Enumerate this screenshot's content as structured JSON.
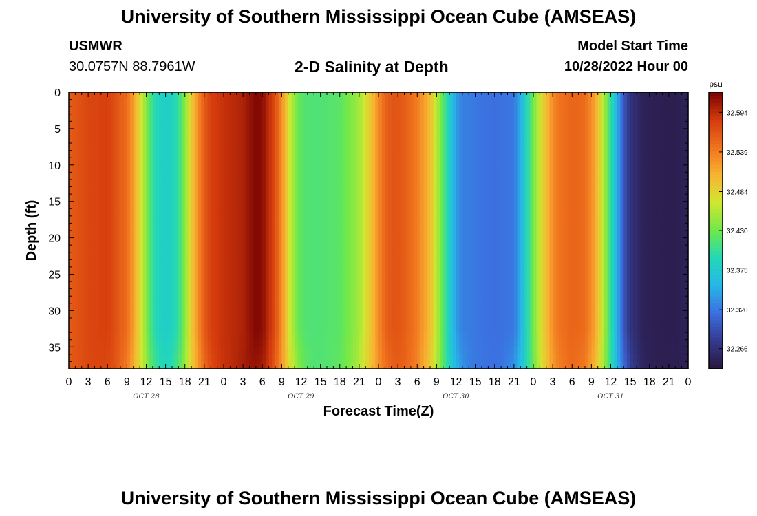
{
  "page": {
    "title": "University of Southern Mississippi Ocean Cube (AMSEAS)",
    "station": "USMWR",
    "coordinates": "30.0757N  88.7961W",
    "subtitle": "2-D Salinity at Depth",
    "start_label": "Model Start Time",
    "start_value": "10/28/2022 Hour 00",
    "footer_title": "University of Southern Mississippi Ocean Cube (AMSEAS)"
  },
  "colors": {
    "colormap": [
      "#2a1740",
      "#333a8c",
      "#3c6ee0",
      "#27b6e8",
      "#22d8b8",
      "#6fe84a",
      "#cfe830",
      "#f8b432",
      "#f0731e",
      "#d43a0c",
      "#7a0403"
    ]
  },
  "chart_data": {
    "type": "heatmap",
    "title": "2-D Salinity at Depth",
    "xlabel": "Forecast Time(Z)",
    "ylabel": "Depth (ft)",
    "x_tick_labels": [
      "0",
      "3",
      "6",
      "9",
      "12",
      "15",
      "18",
      "21",
      "0",
      "3",
      "6",
      "9",
      "12",
      "15",
      "18",
      "21",
      "0",
      "3",
      "6",
      "9",
      "12",
      "15",
      "18",
      "21",
      "0",
      "3",
      "6",
      "9",
      "12",
      "15",
      "18",
      "21",
      "0"
    ],
    "x_hours": [
      0,
      3,
      6,
      9,
      12,
      15,
      18,
      21,
      24,
      27,
      30,
      33,
      36,
      39,
      42,
      45,
      48,
      51,
      54,
      57,
      60,
      63,
      66,
      69,
      72,
      75,
      78,
      81,
      84,
      87,
      90,
      93,
      96
    ],
    "date_labels": [
      {
        "label": "OCT 28",
        "hour": 12
      },
      {
        "label": "OCT 29",
        "hour": 36
      },
      {
        "label": "OCT 30",
        "hour": 60
      },
      {
        "label": "OCT 31",
        "hour": 84
      }
    ],
    "xlim": [
      0,
      96
    ],
    "y_tick_labels": [
      "0",
      "5",
      "10",
      "15",
      "20",
      "25",
      "30",
      "35"
    ],
    "y_values": [
      0,
      5,
      10,
      15,
      20,
      25,
      30,
      35
    ],
    "ylim": [
      0,
      38
    ],
    "colorbar": {
      "unit": "psu",
      "labels": [
        "32.594",
        "32.539",
        "32.484",
        "32.430",
        "32.375",
        "32.320",
        "32.266"
      ],
      "vmin": 32.238,
      "vmax": 32.622
    },
    "surface_salinity_by_hour": {
      "hours": [
        0,
        3,
        6,
        9,
        10,
        11,
        12,
        13,
        14,
        15,
        16,
        17,
        18,
        19,
        20,
        21,
        22,
        24,
        27,
        29,
        30,
        32,
        33,
        34,
        35,
        36,
        37,
        39,
        42,
        45,
        47,
        48,
        49,
        50,
        51,
        52,
        54,
        56,
        57,
        58,
        59,
        60,
        61,
        63,
        66,
        69,
        70,
        71,
        72,
        73,
        74,
        75,
        76,
        78,
        80,
        81,
        82,
        83,
        84,
        85,
        86,
        87,
        89,
        93,
        96
      ],
      "values": [
        32.56,
        32.575,
        32.58,
        32.55,
        32.52,
        32.48,
        32.44,
        32.4,
        32.385,
        32.38,
        32.385,
        32.4,
        32.44,
        32.49,
        32.53,
        32.56,
        32.58,
        32.59,
        32.6,
        32.62,
        32.615,
        32.57,
        32.53,
        32.48,
        32.44,
        32.42,
        32.415,
        32.415,
        32.42,
        32.45,
        32.5,
        32.53,
        32.555,
        32.565,
        32.565,
        32.56,
        32.54,
        32.5,
        32.46,
        32.42,
        32.38,
        32.34,
        32.325,
        32.32,
        32.315,
        32.32,
        32.35,
        32.39,
        32.43,
        32.47,
        32.5,
        32.53,
        32.545,
        32.555,
        32.55,
        32.53,
        32.5,
        32.45,
        32.4,
        32.35,
        32.3,
        32.27,
        32.25,
        32.245,
        32.25
      ]
    }
  }
}
